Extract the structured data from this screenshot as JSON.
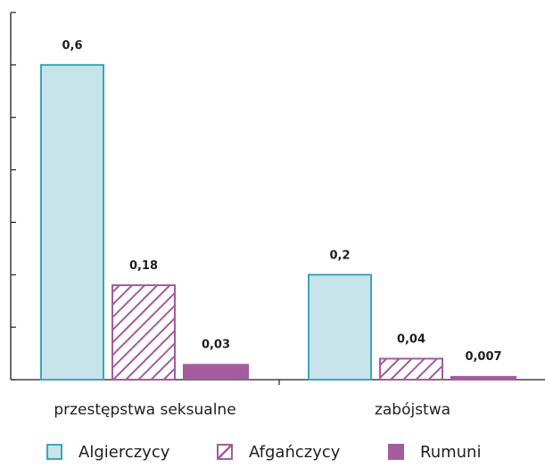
{
  "chart_data": {
    "type": "bar",
    "categories": [
      "przestępstwa seksualne",
      "zabójstwa"
    ],
    "series": [
      {
        "name": "Algierczycy",
        "values": [
          0.6,
          0.2
        ],
        "labels": [
          "0,6",
          "0,2"
        ],
        "style": "outline",
        "fill": "#c7e4ea",
        "stroke": "#3aa8b8"
      },
      {
        "name": "Afgańczycy",
        "values": [
          0.18,
          0.04
        ],
        "labels": [
          "0,18",
          "0,04"
        ],
        "style": "hatched",
        "fill": "#ffffff",
        "stroke": "#a35c9e"
      },
      {
        "name": "Rumuni",
        "values": [
          0.03,
          0.007
        ],
        "labels": [
          "0,03",
          "0,007"
        ],
        "style": "solid",
        "fill": "#a35c9e",
        "stroke": "#a35c9e"
      }
    ],
    "ylim": [
      0,
      0.7
    ],
    "y_tick_step": 0.1,
    "y_tick_labels_shown": false,
    "grid": false,
    "legend_position": "bottom"
  }
}
